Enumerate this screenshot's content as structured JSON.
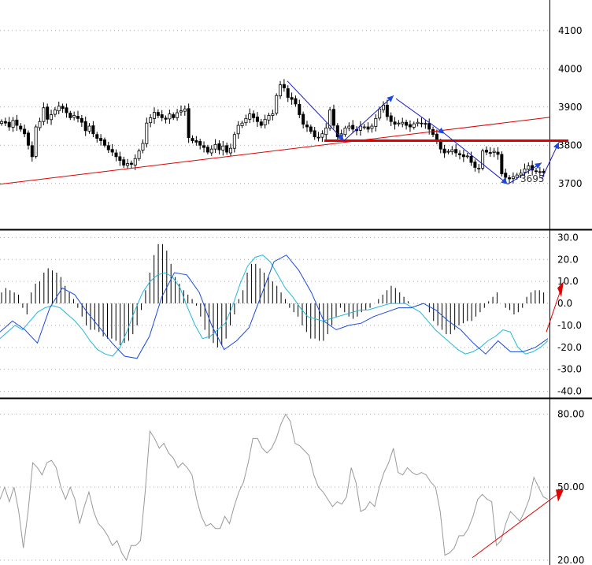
{
  "chart_data": [
    {
      "panel": "price",
      "type": "candlestick",
      "y_ticks": [
        "4100",
        "4000",
        "3900",
        "3800",
        "3700"
      ],
      "ylim": [
        3580,
        4180
      ],
      "grid": "horizontal dotted",
      "annotation_label": "3695",
      "annotation_value": 3695,
      "close_series": [
        3862,
        3858,
        3848,
        3865,
        3852,
        3842,
        3830,
        3800,
        3770,
        3848,
        3862,
        3898,
        3868,
        3880,
        3892,
        3902,
        3896,
        3885,
        3872,
        3878,
        3870,
        3860,
        3838,
        3850,
        3830,
        3818,
        3812,
        3800,
        3788,
        3782,
        3770,
        3760,
        3748,
        3752,
        3750,
        3765,
        3785,
        3805,
        3858,
        3872,
        3886,
        3878,
        3872,
        3868,
        3882,
        3872,
        3885,
        3890,
        3895,
        3820,
        3812,
        3808,
        3800,
        3794,
        3782,
        3790,
        3802,
        3788,
        3798,
        3782,
        3792,
        3828,
        3852,
        3858,
        3870,
        3882,
        3872,
        3862,
        3852,
        3868,
        3878,
        3882,
        3930,
        3958,
        3950,
        3925,
        3920,
        3908,
        3880,
        3855,
        3848,
        3836,
        3822,
        3820,
        3830,
        3845,
        3892,
        3852,
        3822,
        3830,
        3845,
        3850,
        3842,
        3838,
        3850,
        3848,
        3842,
        3850,
        3870,
        3895,
        3905,
        3875,
        3862,
        3855,
        3858,
        3860,
        3852,
        3848,
        3856,
        3860,
        3857,
        3855,
        3842,
        3828,
        3812,
        3790,
        3780,
        3784,
        3788,
        3780,
        3775,
        3770,
        3772,
        3755,
        3742,
        3740,
        3785,
        3782,
        3780,
        3784,
        3776,
        3725,
        3716,
        3712,
        3718,
        3722,
        3727,
        3738,
        3746,
        3735,
        3731,
        3730,
        3728
      ],
      "annotations": [
        "red trendline rising from left edge",
        "red horizontal resistance line near 3815",
        "blue arrows tracing swing highs and lows"
      ]
    },
    {
      "panel": "oscillator",
      "type": "histogram+line",
      "y_ticks": [
        "30.0",
        "20.0",
        "10.0",
        "0.0",
        "-10.0",
        "-20.0",
        "-30.0",
        "-40.0"
      ],
      "ylim": [
        -43,
        33
      ],
      "grid": "horizontal dotted",
      "histogram": [
        5,
        7,
        6,
        5,
        4,
        -2,
        -5,
        5,
        9,
        10,
        14,
        16,
        15,
        14,
        12,
        8,
        5,
        2,
        -2,
        -6,
        -10,
        -12,
        -12,
        -13,
        -15,
        -16,
        -16,
        -17,
        -19,
        -18,
        -17,
        -14,
        -10,
        -3,
        6,
        14,
        22,
        27,
        27,
        24,
        18,
        12,
        9,
        6,
        4,
        2,
        -1,
        -6,
        -12,
        -16,
        -18,
        -20,
        -19,
        -16,
        -10,
        -5,
        2,
        6,
        14,
        18,
        18,
        16,
        14,
        12,
        10,
        8,
        5,
        2,
        -2,
        -4,
        -6,
        -10,
        -13,
        -16,
        -16,
        -17,
        -17,
        -14,
        -10,
        -6,
        -2,
        -4,
        -6,
        -7,
        -6,
        -4,
        -3,
        -2,
        0,
        2,
        4,
        6,
        8,
        7,
        5,
        3,
        1,
        0,
        0,
        0,
        0,
        -4,
        -8,
        -10,
        -12,
        -14,
        -14,
        -12,
        -10,
        -9,
        -8,
        -8,
        -6,
        -4,
        -2,
        1,
        3,
        5,
        0,
        -2,
        -3,
        -5,
        -4,
        -2,
        3,
        5,
        6,
        6,
        5
      ],
      "line_signal": [
        -16,
        -13,
        -10,
        -12,
        -8,
        -4,
        -2,
        -1,
        -2,
        -5,
        -8,
        -12,
        -17,
        -21,
        -23,
        -24,
        -20,
        -12,
        -3,
        5,
        10,
        13,
        14,
        12,
        7,
        -2,
        -10,
        -16,
        -15,
        -12,
        -9,
        -1,
        9,
        17,
        21,
        22,
        19,
        13,
        7,
        3,
        -2,
        -6,
        -7,
        -8,
        -7,
        -6,
        -5,
        -4,
        -3,
        -3,
        -2,
        -1,
        0,
        0,
        0,
        -2,
        -4,
        -8,
        -12,
        -15,
        -18,
        -21,
        -23,
        -22,
        -20,
        -17,
        -15,
        -12,
        -13,
        -20,
        -23,
        -22,
        -20,
        -17
      ],
      "line_macd": [
        -13,
        -8,
        -12,
        -18,
        -2,
        7,
        4,
        -4,
        -11,
        -18,
        -24,
        -25,
        -15,
        3,
        14,
        13,
        5,
        -10,
        -21,
        -17,
        -11,
        4,
        19,
        22,
        15,
        5,
        -8,
        -12,
        -10,
        -9,
        -6,
        -4,
        -2,
        -2,
        0,
        -3,
        -8,
        -12,
        -18,
        -23,
        -17,
        -22,
        -22,
        -20,
        -16
      ]
    },
    {
      "panel": "rsi",
      "type": "line",
      "y_ticks": [
        "80.00",
        "50.00",
        "20.00"
      ],
      "ylim": [
        18,
        86
      ],
      "grid": "horizontal dotted",
      "values": [
        45,
        50,
        44,
        50,
        40,
        25,
        40,
        60,
        58,
        55,
        60,
        61,
        58,
        50,
        45,
        50,
        45,
        35,
        42,
        48,
        40,
        35,
        33,
        30,
        26,
        28,
        23,
        20,
        26,
        26,
        28,
        48,
        73,
        70,
        66,
        68,
        64,
        62,
        58,
        60,
        58,
        55,
        45,
        38,
        34,
        35,
        33,
        33,
        38,
        35,
        42,
        48,
        52,
        60,
        70,
        70,
        66,
        64,
        66,
        70,
        76,
        80,
        77,
        68,
        67,
        65,
        63,
        55,
        50,
        48,
        45,
        42,
        44,
        43,
        46,
        58,
        52,
        40,
        41,
        44,
        42,
        50,
        56,
        60,
        66,
        56,
        55,
        58,
        56,
        55,
        56,
        55,
        52,
        50,
        40,
        22,
        23,
        25,
        30,
        30,
        33,
        38,
        45,
        47,
        45,
        44,
        26,
        28,
        35,
        40,
        38,
        36,
        40,
        45,
        54,
        50,
        46,
        45
      ],
      "annotations": [
        "red arrow trendline rising in lower right"
      ]
    }
  ]
}
